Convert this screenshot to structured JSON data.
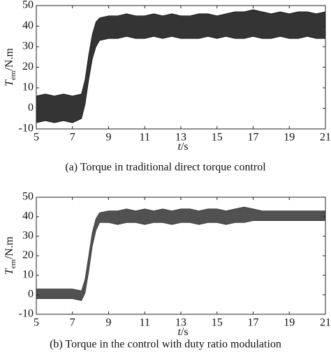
{
  "chart_data": [
    {
      "type": "band",
      "caption": "(a) Torque in traditional direct torque control",
      "y_label": {
        "symbol": "T",
        "sub": "em",
        "unit": "/N.m"
      },
      "x_label": {
        "symbol": "t",
        "unit": "/s"
      },
      "x": [
        5,
        5.5,
        6,
        6.5,
        7,
        7.5,
        7.7,
        7.9,
        8.1,
        8.3,
        8.5,
        9,
        9.5,
        10,
        10.5,
        11,
        11.5,
        12,
        12.5,
        13,
        13.5,
        14,
        14.5,
        15,
        15.5,
        16,
        16.5,
        17,
        17.5,
        18,
        18.5,
        19,
        19.5,
        20,
        20.5,
        21
      ],
      "series": [
        {
          "color": "#111",
          "values": [
            6,
            7,
            6,
            7,
            6,
            7,
            14,
            26,
            36,
            42,
            44,
            45,
            45,
            46,
            45,
            45,
            46,
            45,
            46,
            45,
            45,
            46,
            46,
            45,
            46,
            47,
            47,
            48,
            47,
            46,
            47,
            46,
            47,
            47,
            46,
            47
          ]
        },
        {
          "color": "#111",
          "values": [
            -7,
            -6,
            -7,
            -6,
            -7,
            -5,
            2,
            14,
            24,
            30,
            33,
            34,
            34,
            35,
            34,
            34,
            35,
            34,
            35,
            34,
            34,
            34,
            35,
            34,
            35,
            34,
            34,
            35,
            34,
            34,
            35,
            34,
            34,
            35,
            34,
            34
          ]
        }
      ],
      "xlim": [
        5,
        21
      ],
      "xticks": [
        5,
        7,
        9,
        11,
        13,
        15,
        17,
        19,
        21
      ],
      "ylim": [
        -10,
        50
      ],
      "yticks": [
        -10,
        0,
        10,
        20,
        30,
        40,
        50
      ]
    },
    {
      "type": "band",
      "caption": "(b) Torque in the control with duty ratio modulation",
      "y_label": {
        "symbol": "T",
        "sub": "em",
        "unit": "/N.m"
      },
      "x_label": {
        "symbol": "t",
        "unit": "/s"
      },
      "x": [
        5,
        5.5,
        6,
        6.5,
        7,
        7.5,
        7.7,
        7.9,
        8.1,
        8.3,
        8.5,
        9,
        9.5,
        10,
        10.5,
        11,
        11.5,
        12,
        12.5,
        13,
        13.5,
        14,
        14.5,
        15,
        15.5,
        16,
        16.5,
        17,
        17.5,
        18,
        18.5,
        19,
        19.5,
        20,
        20.5,
        21
      ],
      "series": [
        {
          "color": "#333",
          "values": [
            3,
            3,
            3,
            3,
            3,
            2,
            8,
            20,
            32,
            39,
            42,
            43,
            43,
            44,
            43,
            44,
            43,
            44,
            43,
            44,
            44,
            43,
            44,
            44,
            43,
            44,
            45,
            44,
            43,
            43,
            43,
            43,
            43,
            43,
            43,
            43
          ]
        },
        {
          "color": "#333",
          "values": [
            -2,
            -2,
            -2,
            -2,
            -2,
            -3,
            1,
            12,
            25,
            33,
            37,
            37,
            36,
            37,
            37,
            36,
            37,
            37,
            36,
            37,
            37,
            36,
            37,
            37,
            36,
            37,
            37,
            38,
            38,
            38,
            38,
            38,
            38,
            38,
            38,
            38
          ]
        }
      ],
      "xlim": [
        5,
        21
      ],
      "xticks": [
        5,
        7,
        9,
        11,
        13,
        15,
        17,
        19,
        21
      ],
      "ylim": [
        -10,
        50
      ],
      "yticks": [
        -10,
        0,
        10,
        20,
        30,
        40,
        50
      ]
    }
  ]
}
